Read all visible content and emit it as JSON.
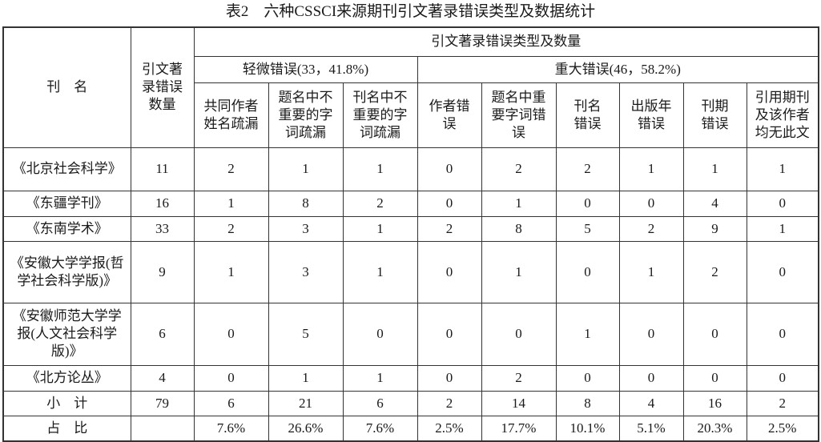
{
  "title": "表2　六种CSSCI来源期刊引文著录错误类型及数据统计",
  "header": {
    "journal_col": "刊　名",
    "count_col": "引文著录错误数量",
    "types_group": "引文著录错误类型及数量",
    "minor_group": "轻微错误(33，41.8%)",
    "major_group": "重大错误(46，58.2%)",
    "columns": [
      "共同作者姓名疏漏",
      "题名中不重要的字词疏漏",
      "刊名中不重要的字词疏漏",
      "作者错误",
      "题名中重要字词错误",
      "刊名错误",
      "出版年错误",
      "刊期错误",
      "引用期刊及该作者均无此文"
    ]
  },
  "rows": [
    {
      "name": "《北京社会科学》",
      "cells": [
        "11",
        "2",
        "1",
        "1",
        "0",
        "2",
        "2",
        "1",
        "1",
        "1"
      ]
    },
    {
      "name": "《东疆学刊》",
      "cells": [
        "16",
        "1",
        "8",
        "2",
        "0",
        "1",
        "0",
        "0",
        "4",
        "0"
      ]
    },
    {
      "name": "《东南学术》",
      "cells": [
        "33",
        "2",
        "3",
        "1",
        "2",
        "8",
        "5",
        "2",
        "9",
        "1"
      ]
    },
    {
      "name": "《安徽大学学报(哲学社会科学版)》",
      "cells": [
        "9",
        "1",
        "3",
        "1",
        "0",
        "1",
        "0",
        "1",
        "2",
        "0"
      ]
    },
    {
      "name": "《安徽师范大学学报(人文社会科学版)》",
      "cells": [
        "6",
        "0",
        "5",
        "0",
        "0",
        "0",
        "1",
        "0",
        "0",
        "0"
      ]
    },
    {
      "name": "《北方论丛》",
      "cells": [
        "4",
        "0",
        "1",
        "1",
        "0",
        "2",
        "0",
        "0",
        "0",
        "0"
      ]
    },
    {
      "name": "小　计",
      "cells": [
        "79",
        "6",
        "21",
        "6",
        "2",
        "14",
        "8",
        "4",
        "16",
        "2"
      ]
    },
    {
      "name": "占　比",
      "cells": [
        "",
        "7.6%",
        "26.6%",
        "7.6%",
        "2.5%",
        "17.7%",
        "10.1%",
        "5.1%",
        "20.3%",
        "2.5%"
      ]
    }
  ]
}
